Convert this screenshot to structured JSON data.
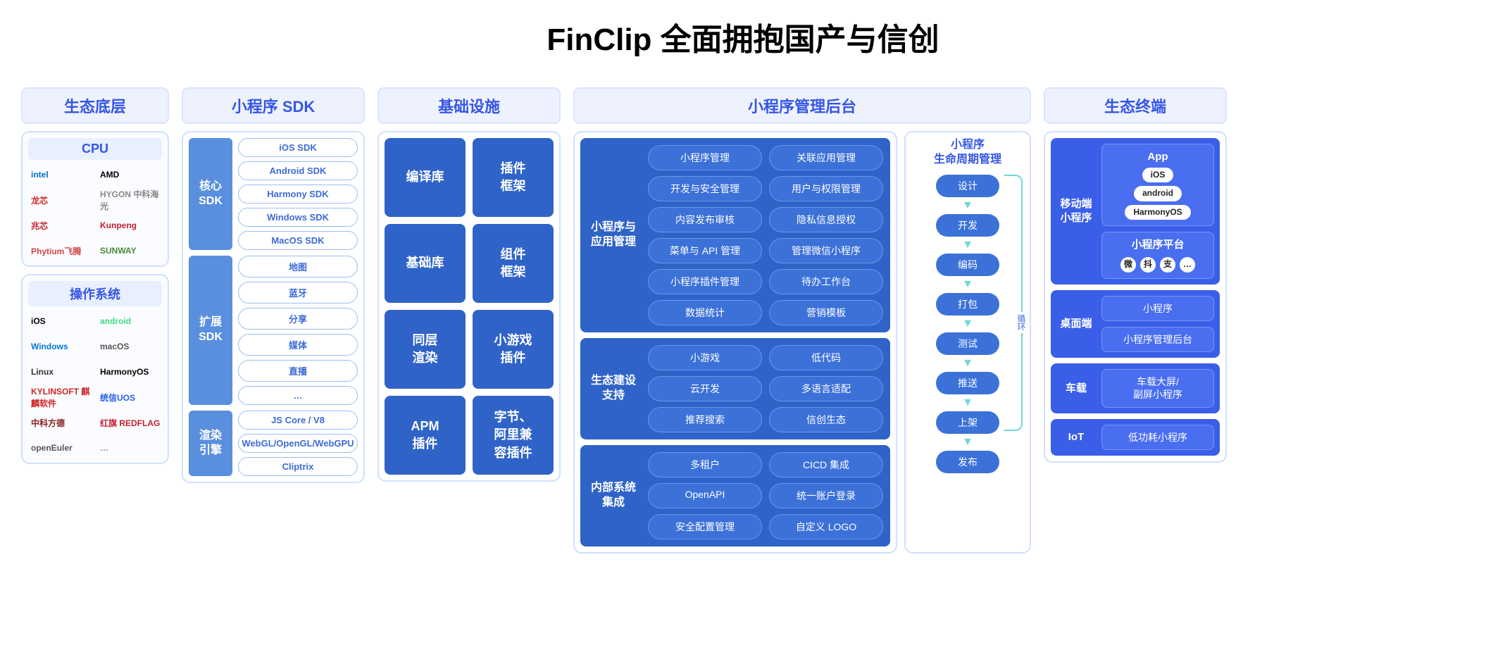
{
  "title": "FinClip 全面拥抱国产与信创",
  "colors": {
    "header_bg": "#eef2ff",
    "header_fg": "#3556e6",
    "header_border": "#dbe4ff",
    "frame_border": "#cfe0ff",
    "mid_blue": "#5a8fde",
    "dark_blue": "#2f63c8",
    "pill_blue": "#3c71d8",
    "pill_border": "#6a97e8",
    "bright_blue": "#3a5ee8",
    "bright_blue_inner": "#4a6ef0",
    "bright_blue_border": "#7a95f5",
    "arrow_cyan": "#6fd7d7",
    "sdk_item_border": "#9cbef5",
    "sdk_item_fg": "#3d6bd6"
  },
  "col1": {
    "header": "生态底层",
    "cpu": {
      "title": "CPU",
      "logos": [
        {
          "label": "intel",
          "color": "#0071c5"
        },
        {
          "label": "AMD",
          "color": "#000000"
        },
        {
          "label": "龙芯",
          "color": "#d32323"
        },
        {
          "label": "HYGON 中科海光",
          "color": "#888888"
        },
        {
          "label": "兆芯",
          "color": "#c81e2e"
        },
        {
          "label": "Kunpeng",
          "color": "#c81e2e"
        },
        {
          "label": "Phytium飞腾",
          "color": "#d34747"
        },
        {
          "label": "SUNWAY",
          "color": "#4a8a3a"
        }
      ]
    },
    "os": {
      "title": "操作系统",
      "logos": [
        {
          "label": " iOS",
          "color": "#000000"
        },
        {
          "label": "android",
          "color": "#3ddc84"
        },
        {
          "label": "Windows",
          "color": "#0078d4"
        },
        {
          "label": "macOS",
          "color": "#555555"
        },
        {
          "label": "Linux",
          "color": "#333333"
        },
        {
          "label": "HarmonyOS",
          "color": "#000000"
        },
        {
          "label": "KYLINSOFT 麒麟软件",
          "color": "#d32323"
        },
        {
          "label": "统信UOS",
          "color": "#2760e8"
        },
        {
          "label": "中科方德",
          "color": "#8a2020"
        },
        {
          "label": "红旗 REDFLAG",
          "color": "#c81e2e"
        },
        {
          "label": "openEuler",
          "color": "#555555"
        },
        {
          "label": "…",
          "color": "#888888"
        }
      ]
    }
  },
  "col2": {
    "header": "小程序 SDK",
    "groups": [
      {
        "label": "核心\nSDK",
        "items": [
          "iOS SDK",
          "Android SDK",
          "Harmony SDK",
          "Windows SDK",
          "MacOS SDK"
        ]
      },
      {
        "label": "扩展\nSDK",
        "items": [
          "地图",
          "蓝牙",
          "分享",
          "媒体",
          "直播",
          "…"
        ]
      },
      {
        "label": "渲染\n引擎",
        "items": [
          "JS Core / V8",
          "WebGL/OpenGL/WebGPU",
          "Cliptrix"
        ]
      }
    ]
  },
  "col3": {
    "header": "基础设施",
    "items": [
      "编译库",
      "插件\n框架",
      "基础库",
      "组件\n框架",
      "同层\n渲染",
      "小游戏\n插件",
      "APM\n插件",
      "字节、\n阿里兼\n容插件"
    ]
  },
  "col4": {
    "header": "小程序管理后台",
    "sections": [
      {
        "label": "小程序与\n应用管理",
        "pills": [
          "小程序管理",
          "关联应用管理",
          "开发与安全管理",
          "用户与权限管理",
          "内容发布审核",
          "隐私信息授权",
          "菜单与 API 管理",
          "管理微信小程序",
          "小程序插件管理",
          "待办工作台",
          "数据统计",
          "营销模板"
        ]
      },
      {
        "label": "生态建设\n支持",
        "pills": [
          "小游戏",
          "低代码",
          "云开发",
          "多语言适配",
          "推荐搜索",
          "信创生态"
        ]
      },
      {
        "label": "内部系统\n集成",
        "pills": [
          "多租户",
          "CICD 集成",
          "OpenAPI",
          "统一账户登录",
          "安全配置管理",
          "自定义 LOGO"
        ]
      }
    ],
    "lifecycle": {
      "title": "小程序\n生命周期管理",
      "steps": [
        "设计",
        "开发",
        "编码",
        "打包",
        "测试",
        "推送",
        "上架",
        "发布"
      ],
      "loop_label": "循环"
    }
  },
  "col5": {
    "header": "生态终端",
    "rows": [
      {
        "label": "移动端\n小程序",
        "app_box": {
          "title": "App",
          "oss": [
            "iOS",
            "android",
            "HarmonyOS"
          ]
        },
        "platform_box": {
          "title": "小程序平台",
          "icons": [
            "微",
            "抖",
            "支",
            "…"
          ]
        }
      },
      {
        "label": "桌面端",
        "plain": [
          "小程序",
          "小程序管理后台"
        ]
      },
      {
        "label": "车载",
        "plain": [
          "车载大屏/\n副屏小程序"
        ]
      },
      {
        "label": "IoT",
        "plain": [
          "低功耗小程序"
        ]
      }
    ]
  }
}
